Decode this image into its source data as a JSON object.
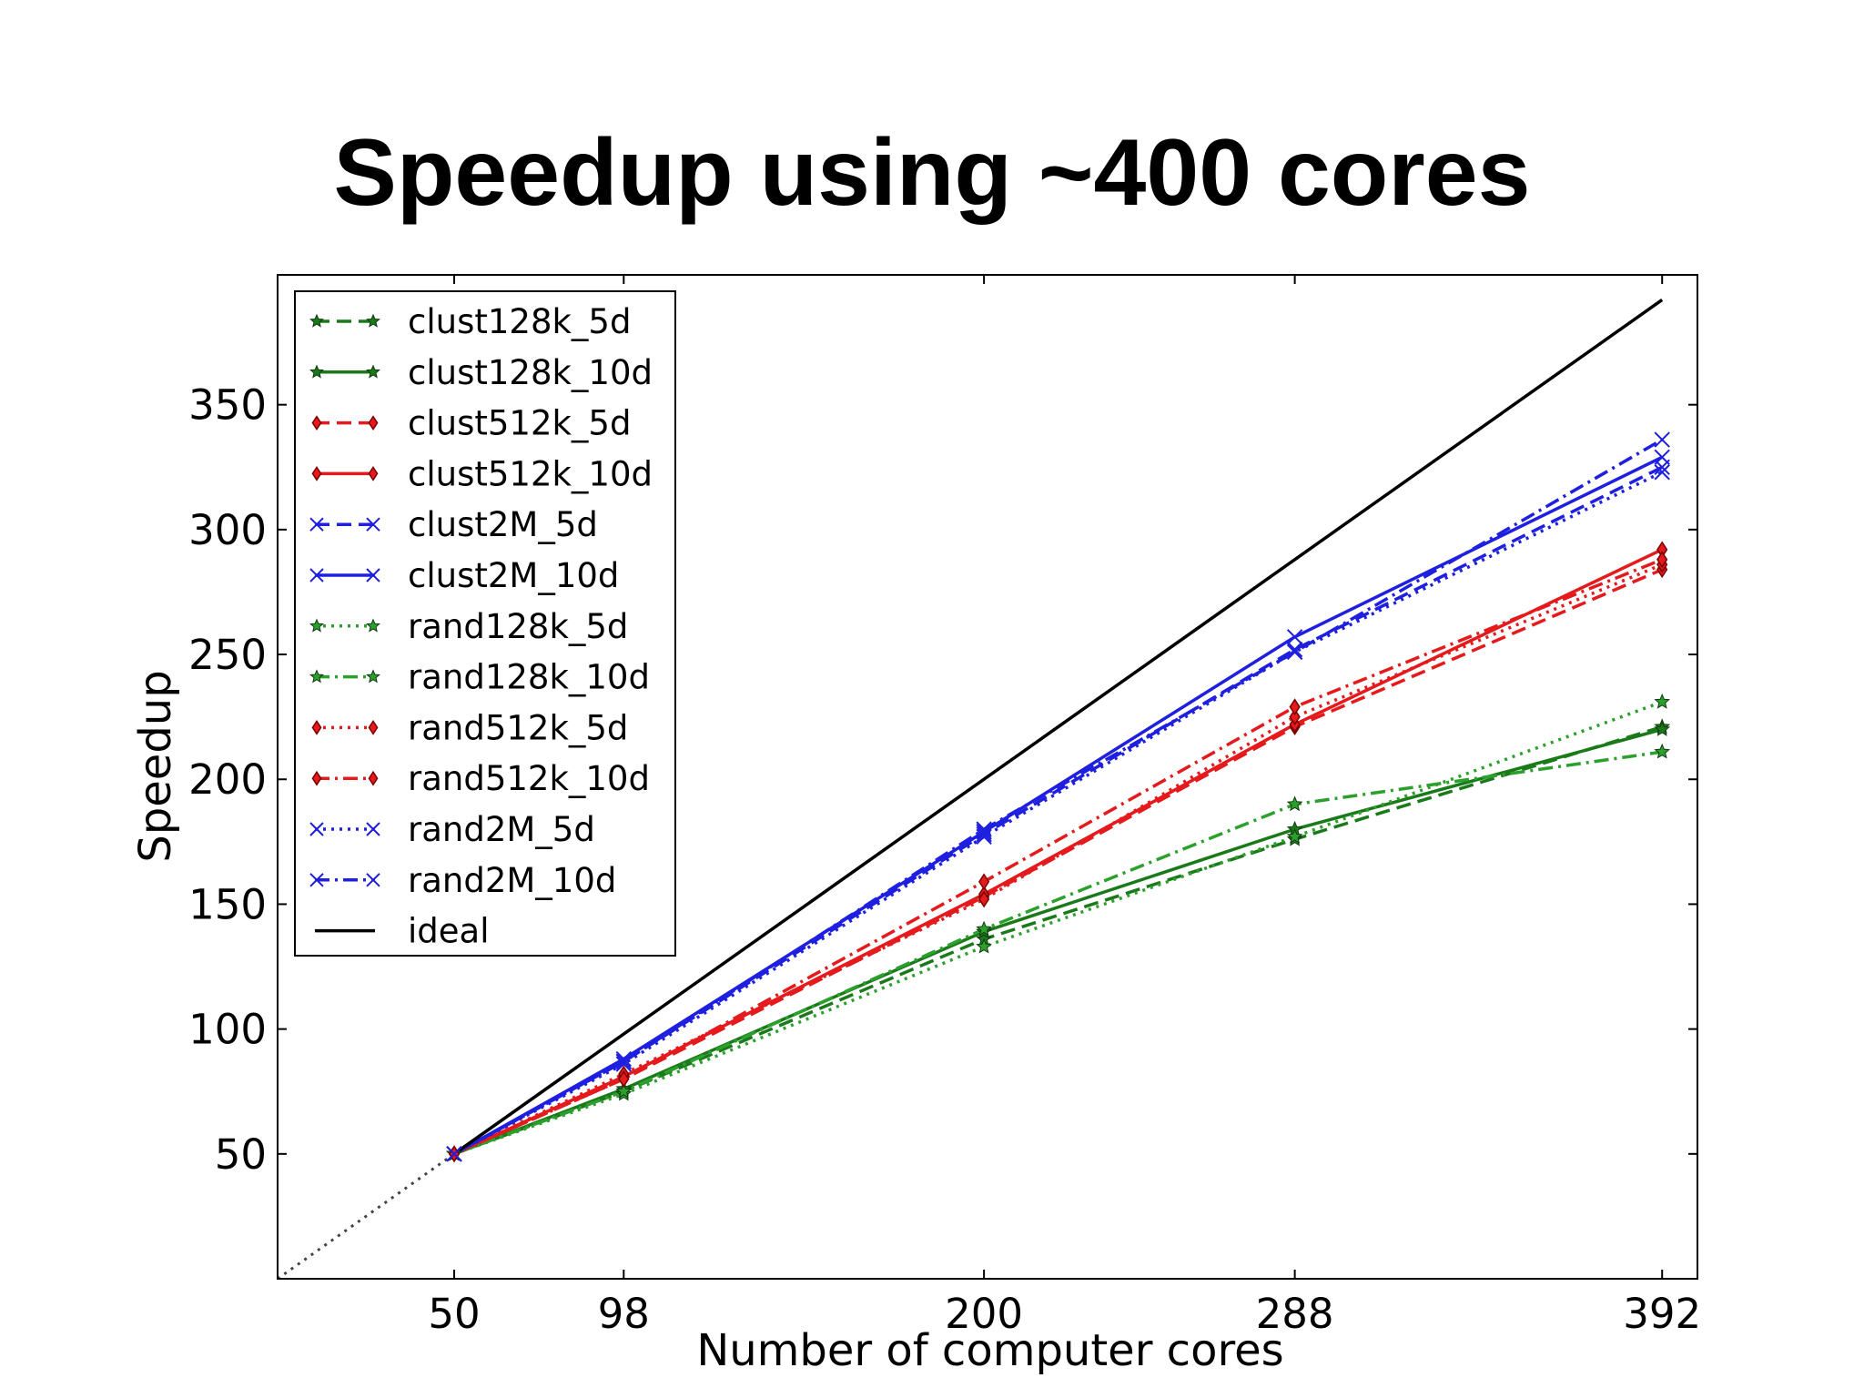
{
  "slide": {
    "title": "Speedup using ~400 cores"
  },
  "chart_data": {
    "type": "line",
    "title": "",
    "xlabel": "Number of computer cores",
    "ylabel": "Speedup",
    "xlim": [
      0,
      402
    ],
    "ylim": [
      0,
      402
    ],
    "x_ticks": [
      50,
      98,
      200,
      288,
      392
    ],
    "y_ticks": [
      50,
      100,
      150,
      200,
      250,
      300,
      350
    ],
    "legend_position": "upper-left",
    "reference_line": {
      "style": "dotted",
      "color": "#444444",
      "x": [
        0,
        50
      ],
      "y": [
        0,
        50
      ]
    },
    "x": [
      50,
      98,
      200,
      288,
      392
    ],
    "series": [
      {
        "name": "clust128k_5d",
        "values": [
          50,
          75,
          136,
          176,
          221
        ],
        "color": "#1a7a1a",
        "dash": "dashed",
        "marker": "star"
      },
      {
        "name": "clust128k_10d",
        "values": [
          50,
          76,
          139,
          180,
          220
        ],
        "color": "#1a7a1a",
        "dash": "solid",
        "marker": "star"
      },
      {
        "name": "clust512k_5d",
        "values": [
          50,
          80,
          153,
          221,
          284
        ],
        "color": "#e41a1c",
        "dash": "dashed",
        "marker": "diamond"
      },
      {
        "name": "clust512k_10d",
        "values": [
          50,
          81,
          154,
          222,
          292
        ],
        "color": "#e41a1c",
        "dash": "solid",
        "marker": "diamond"
      },
      {
        "name": "clust2M_5d",
        "values": [
          50,
          87,
          178,
          252,
          325
        ],
        "color": "#1f1fe0",
        "dash": "dashed",
        "marker": "x"
      },
      {
        "name": "clust2M_10d",
        "values": [
          50,
          88,
          179,
          257,
          329
        ],
        "color": "#1f1fe0",
        "dash": "solid",
        "marker": "x"
      },
      {
        "name": "rand128k_5d",
        "values": [
          50,
          74,
          133,
          177,
          231
        ],
        "color": "#2ca02c",
        "dash": "dotted",
        "marker": "star"
      },
      {
        "name": "rand128k_10d",
        "values": [
          50,
          75,
          140,
          190,
          211
        ],
        "color": "#2ca02c",
        "dash": "dashdot",
        "marker": "star"
      },
      {
        "name": "rand512k_5d",
        "values": [
          50,
          82,
          152,
          225,
          286
        ],
        "color": "#e41a1c",
        "dash": "dotted",
        "marker": "diamond"
      },
      {
        "name": "rand512k_10d",
        "values": [
          50,
          80,
          159,
          229,
          288
        ],
        "color": "#e41a1c",
        "dash": "dashdot",
        "marker": "diamond"
      },
      {
        "name": "rand2M_5d",
        "values": [
          50,
          86,
          177,
          251,
          323
        ],
        "color": "#1f1fe0",
        "dash": "dotted",
        "marker": "x"
      },
      {
        "name": "rand2M_10d",
        "values": [
          50,
          87,
          180,
          251,
          336
        ],
        "color": "#1f1fe0",
        "dash": "dashdot",
        "marker": "x"
      },
      {
        "name": "ideal",
        "values": [
          50,
          98,
          200,
          288,
          392
        ],
        "color": "#000000",
        "dash": "solid",
        "marker": "none"
      }
    ]
  }
}
